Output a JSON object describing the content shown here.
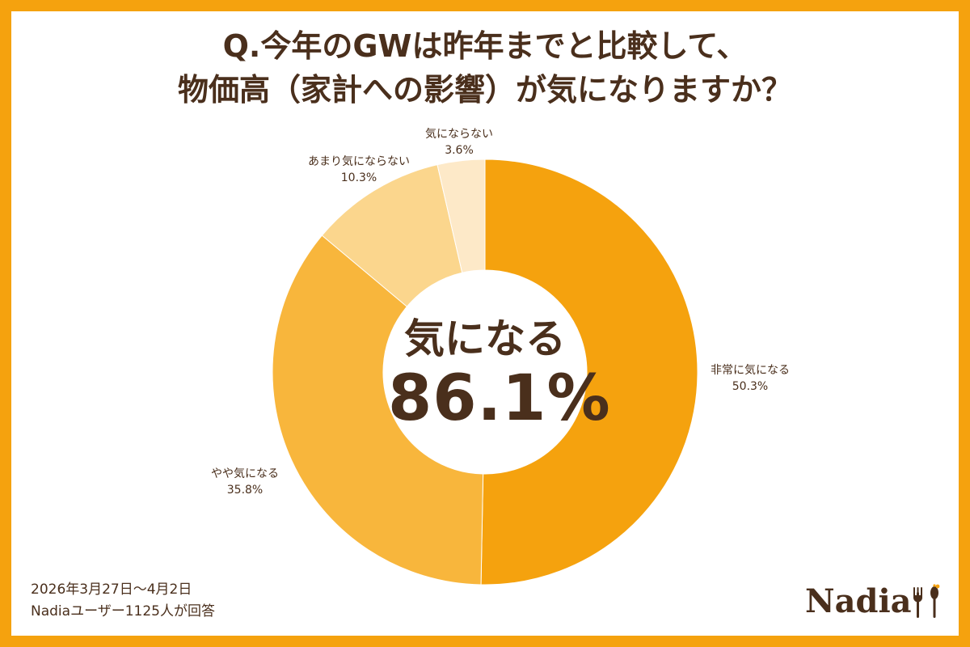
{
  "title": {
    "line1": "Q.今年のGWは昨年までと比較して、",
    "line2": "物価高（家計への影響）が気になりますか？"
  },
  "chart_data": {
    "type": "pie",
    "donut": true,
    "slices": [
      {
        "label": "非常に気になる",
        "value": 50.3,
        "display": "50.3%",
        "color": "#f5a20e"
      },
      {
        "label": "やや気になる",
        "value": 35.8,
        "display": "35.8%",
        "color": "#f8b63c"
      },
      {
        "label": "あまり気にならない",
        "value": 10.3,
        "display": "10.3%",
        "color": "#fbd68d"
      },
      {
        "label": "気にならない",
        "value": 3.6,
        "display": "3.6%",
        "color": "#fde9c8"
      }
    ],
    "center": {
      "label": "気になる",
      "value": "86.1%"
    }
  },
  "footnote": {
    "date": "2026年3月27日〜4月2日",
    "respondents": "Nadiaユーザー1125人が回答"
  },
  "logo": {
    "text": "Nadia"
  },
  "colors": {
    "brand": "#f5a20e",
    "text": "#4a2f1c",
    "card": "#ffffff"
  }
}
